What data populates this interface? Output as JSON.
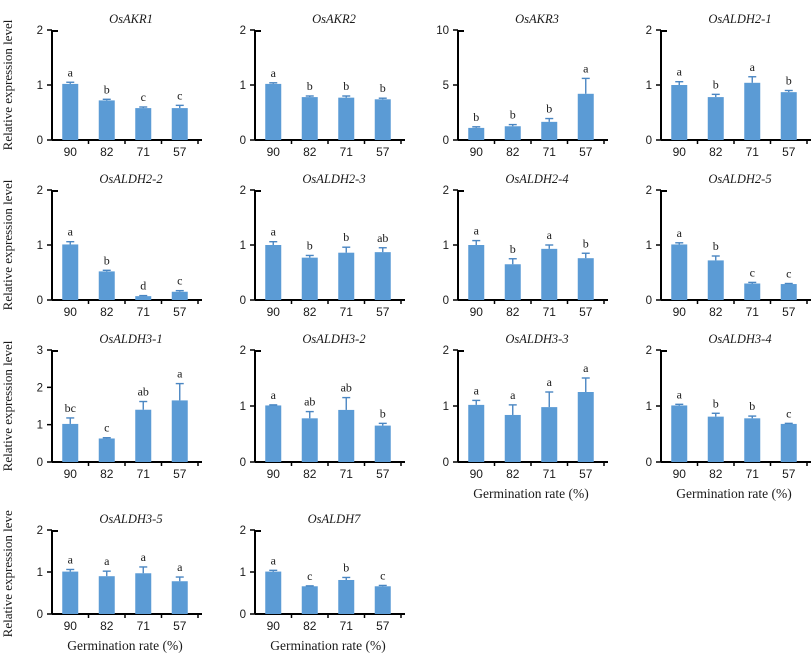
{
  "figure": {
    "ylabel": "Relative expression level",
    "xlabel": "Germination rate (%)"
  },
  "colors": {
    "bar": "#5B9BD5",
    "error_bar": "#4a86c2",
    "axis": "#000000",
    "text": "#1a1a1a"
  },
  "chart_data": [
    {
      "type": "bar",
      "title": "OsAKR1",
      "categories": [
        "90",
        "82",
        "71",
        "57"
      ],
      "values": [
        1.02,
        0.72,
        0.58,
        0.58
      ],
      "errors": [
        0.03,
        0.02,
        0.02,
        0.05
      ],
      "letters": [
        "a",
        "b",
        "c",
        "c"
      ],
      "ylim": [
        0,
        2
      ],
      "yticks": [
        0,
        1,
        2
      ],
      "show_ylabel": true,
      "show_xlabel": false
    },
    {
      "type": "bar",
      "title": "OsAKR2",
      "categories": [
        "90",
        "82",
        "71",
        "57"
      ],
      "values": [
        1.02,
        0.78,
        0.77,
        0.74
      ],
      "errors": [
        0.02,
        0.02,
        0.03,
        0.02
      ],
      "letters": [
        "a",
        "b",
        "b",
        "b"
      ],
      "ylim": [
        0,
        2
      ],
      "yticks": [
        0,
        1,
        2
      ],
      "show_ylabel": false,
      "show_xlabel": false
    },
    {
      "type": "bar",
      "title": "OsAKR3",
      "categories": [
        "90",
        "82",
        "71",
        "57"
      ],
      "values": [
        1.1,
        1.25,
        1.65,
        4.2
      ],
      "errors": [
        0.1,
        0.15,
        0.3,
        1.4
      ],
      "letters": [
        "b",
        "b",
        "b",
        "a"
      ],
      "ylim": [
        0,
        10
      ],
      "yticks": [
        0,
        5,
        10
      ],
      "show_ylabel": false,
      "show_xlabel": false
    },
    {
      "type": "bar",
      "title": "OsALDH2-1",
      "categories": [
        "90",
        "82",
        "71",
        "57"
      ],
      "values": [
        1.0,
        0.78,
        1.04,
        0.87
      ],
      "errors": [
        0.06,
        0.05,
        0.11,
        0.03
      ],
      "letters": [
        "a",
        "b",
        "a",
        "b"
      ],
      "ylim": [
        0,
        2
      ],
      "yticks": [
        0,
        1,
        2
      ],
      "show_ylabel": false,
      "show_xlabel": false
    },
    {
      "type": "bar",
      "title": "OsALDH2-2",
      "categories": [
        "90",
        "82",
        "71",
        "57"
      ],
      "values": [
        1.01,
        0.52,
        0.07,
        0.15
      ],
      "errors": [
        0.05,
        0.02,
        0.01,
        0.02
      ],
      "letters": [
        "a",
        "b",
        "d",
        "c"
      ],
      "ylim": [
        0,
        2
      ],
      "yticks": [
        0,
        1,
        2
      ],
      "show_ylabel": true,
      "show_xlabel": false
    },
    {
      "type": "bar",
      "title": "OsALDH2-3",
      "categories": [
        "90",
        "82",
        "71",
        "57"
      ],
      "values": [
        1.0,
        0.77,
        0.86,
        0.87
      ],
      "errors": [
        0.06,
        0.04,
        0.1,
        0.08
      ],
      "letters": [
        "a",
        "b",
        "b",
        "ab"
      ],
      "ylim": [
        0,
        2
      ],
      "yticks": [
        0,
        1,
        2
      ],
      "show_ylabel": false,
      "show_xlabel": false
    },
    {
      "type": "bar",
      "title": "OsALDH2-4",
      "categories": [
        "90",
        "82",
        "71",
        "57"
      ],
      "values": [
        1.0,
        0.65,
        0.93,
        0.76
      ],
      "errors": [
        0.08,
        0.1,
        0.07,
        0.09
      ],
      "letters": [
        "a",
        "b",
        "a",
        "b"
      ],
      "ylim": [
        0,
        2
      ],
      "yticks": [
        0,
        1,
        2
      ],
      "show_ylabel": false,
      "show_xlabel": false
    },
    {
      "type": "bar",
      "title": "OsALDH2-5",
      "categories": [
        "90",
        "82",
        "71",
        "57"
      ],
      "values": [
        1.01,
        0.72,
        0.3,
        0.29
      ],
      "errors": [
        0.03,
        0.08,
        0.02,
        0.01
      ],
      "letters": [
        "a",
        "b",
        "c",
        "c"
      ],
      "ylim": [
        0,
        2
      ],
      "yticks": [
        0,
        1,
        2
      ],
      "show_ylabel": false,
      "show_xlabel": false
    },
    {
      "type": "bar",
      "title": "OsALDH3-1",
      "categories": [
        "90",
        "82",
        "71",
        "57"
      ],
      "values": [
        1.02,
        0.63,
        1.4,
        1.65
      ],
      "errors": [
        0.16,
        0.02,
        0.22,
        0.45
      ],
      "letters": [
        "bc",
        "c",
        "ab",
        "a"
      ],
      "ylim": [
        0,
        3
      ],
      "yticks": [
        0,
        1,
        2,
        3
      ],
      "show_ylabel": true,
      "show_xlabel": false
    },
    {
      "type": "bar",
      "title": "OsALDH3-2",
      "categories": [
        "90",
        "82",
        "71",
        "57"
      ],
      "values": [
        1.01,
        0.78,
        0.93,
        0.65
      ],
      "errors": [
        0.01,
        0.12,
        0.22,
        0.04
      ],
      "letters": [
        "a",
        "ab",
        "ab",
        "b"
      ],
      "ylim": [
        0,
        2
      ],
      "yticks": [
        0,
        1,
        2
      ],
      "show_ylabel": false,
      "show_xlabel": false
    },
    {
      "type": "bar",
      "title": "OsALDH3-3",
      "categories": [
        "90",
        "82",
        "71",
        "57"
      ],
      "values": [
        1.02,
        0.84,
        0.98,
        1.25
      ],
      "errors": [
        0.08,
        0.18,
        0.27,
        0.25
      ],
      "letters": [
        "a",
        "a",
        "a",
        "a"
      ],
      "ylim": [
        0,
        2
      ],
      "yticks": [
        0,
        1,
        2
      ],
      "show_ylabel": false,
      "show_xlabel": true
    },
    {
      "type": "bar",
      "title": "OsALDH3-4",
      "categories": [
        "90",
        "82",
        "71",
        "57"
      ],
      "values": [
        1.01,
        0.81,
        0.78,
        0.68
      ],
      "errors": [
        0.02,
        0.06,
        0.04,
        0.01
      ],
      "letters": [
        "a",
        "b",
        "b",
        "c"
      ],
      "ylim": [
        0,
        2
      ],
      "yticks": [
        0,
        1,
        2
      ],
      "show_ylabel": false,
      "show_xlabel": true
    },
    {
      "type": "bar",
      "title": "OsALDH3-5",
      "categories": [
        "90",
        "82",
        "71",
        "57"
      ],
      "values": [
        1.01,
        0.9,
        0.97,
        0.78
      ],
      "errors": [
        0.05,
        0.12,
        0.15,
        0.1
      ],
      "letters": [
        "a",
        "a",
        "a",
        "a"
      ],
      "ylim": [
        0,
        2
      ],
      "yticks": [
        0,
        1,
        2
      ],
      "show_ylabel": true,
      "show_xlabel": true
    },
    {
      "type": "bar",
      "title": "OsALDH7",
      "categories": [
        "90",
        "82",
        "71",
        "57"
      ],
      "values": [
        1.01,
        0.66,
        0.81,
        0.66
      ],
      "errors": [
        0.03,
        0.01,
        0.06,
        0.02
      ],
      "letters": [
        "a",
        "c",
        "b",
        "c"
      ],
      "ylim": [
        0,
        2
      ],
      "yticks": [
        0,
        1,
        2
      ],
      "show_ylabel": false,
      "show_xlabel": true
    }
  ]
}
